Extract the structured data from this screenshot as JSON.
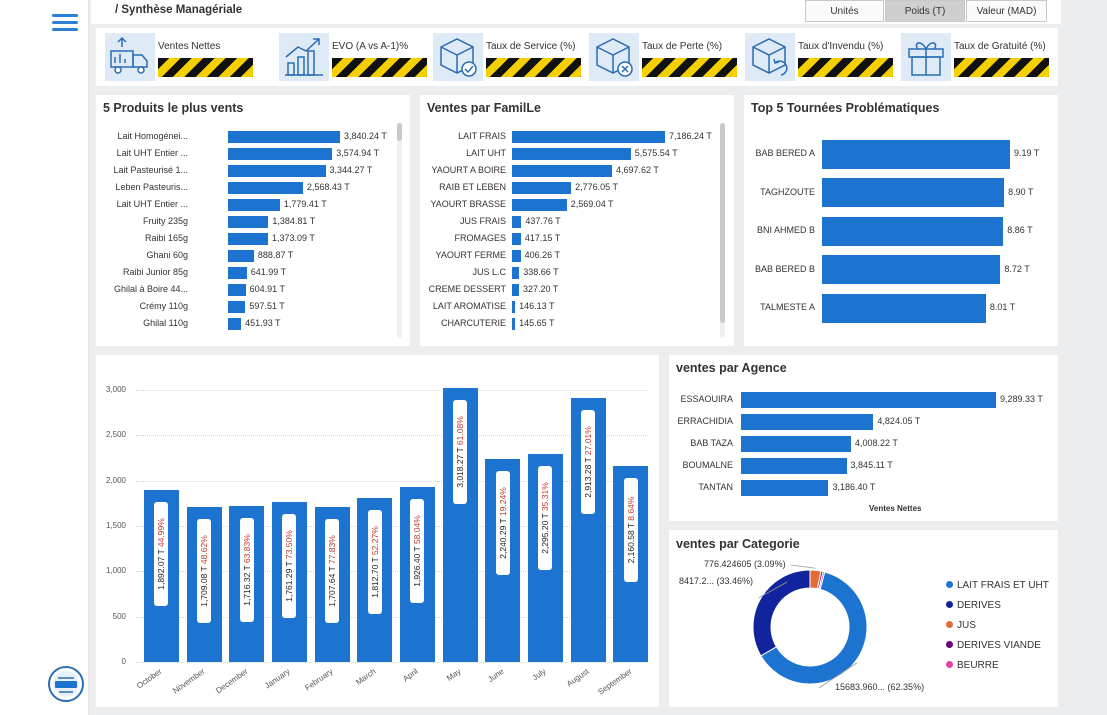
{
  "page": {
    "title": "/ Synthèse Managériale"
  },
  "toggles": [
    {
      "label": "Unités",
      "active": false
    },
    {
      "label": "Poids (T)",
      "active": true
    },
    {
      "label": "Valeur (MAD)",
      "active": false
    }
  ],
  "kpis": [
    {
      "label": "Ventes Nettes",
      "icon": "truck-icon"
    },
    {
      "label": "EVO (A vs A-1)%",
      "icon": "growth-chart-icon"
    },
    {
      "label": "Taux de Service (%)",
      "icon": "box-check-icon"
    },
    {
      "label": "Taux de Perte (%)",
      "icon": "box-cancel-icon"
    },
    {
      "label": "Taux d'Invendu (%)",
      "icon": "box-return-icon"
    },
    {
      "label": "Taux de Gratuité (%)",
      "icon": "gift-icon"
    }
  ],
  "products": {
    "title": "5 Produits le plus vents",
    "items": [
      {
        "label": "Lait Homogénei...",
        "value": 3840.24,
        "text": "3,840.24 T"
      },
      {
        "label": "Lait UHT Entier ...",
        "value": 3574.94,
        "text": "3,574.94 T"
      },
      {
        "label": "Lait Pasteurisé 1...",
        "value": 3344.27,
        "text": "3,344.27 T"
      },
      {
        "label": "Leben Pasteuris...",
        "value": 2568.43,
        "text": "2,568.43 T"
      },
      {
        "label": "Lait UHT Entier ...",
        "value": 1779.41,
        "text": "1,779.41 T"
      },
      {
        "label": "Fruity 235g",
        "value": 1384.81,
        "text": "1,384.81 T"
      },
      {
        "label": "Raibi 165g",
        "value": 1373.09,
        "text": "1,373.09 T"
      },
      {
        "label": "Ghani 60g",
        "value": 888.87,
        "text": "888.87 T"
      },
      {
        "label": "Raibi Junior 85g",
        "value": 641.99,
        "text": "641.99 T"
      },
      {
        "label": "Ghilal à Boire 44...",
        "value": 604.91,
        "text": "604.91 T"
      },
      {
        "label": "Crémy 110g",
        "value": 597.51,
        "text": "597.51 T"
      },
      {
        "label": "Ghilal 110g",
        "value": 451.93,
        "text": "451.93 T"
      }
    ]
  },
  "families": {
    "title": "Ventes par FamilLe",
    "items": [
      {
        "label": "LAIT FRAIS",
        "value": 7186.24,
        "text": "7,186.24 T"
      },
      {
        "label": "LAIT UHT",
        "value": 5575.54,
        "text": "5,575.54 T"
      },
      {
        "label": "YAOURT A BOIRE",
        "value": 4697.62,
        "text": "4,697.62 T"
      },
      {
        "label": "RAIB ET LEBEN",
        "value": 2776.05,
        "text": "2,776.05 T"
      },
      {
        "label": "YAOURT BRASSE",
        "value": 2569.04,
        "text": "2,569.04 T"
      },
      {
        "label": "JUS FRAIS",
        "value": 437.76,
        "text": "437.76 T"
      },
      {
        "label": "FROMAGES",
        "value": 417.15,
        "text": "417.15 T"
      },
      {
        "label": "YAOURT FERME",
        "value": 406.26,
        "text": "406.26 T"
      },
      {
        "label": "JUS L.C",
        "value": 338.66,
        "text": "338.66 T"
      },
      {
        "label": "CREME DESSERT",
        "value": 327.2,
        "text": "327.20 T"
      },
      {
        "label": "LAIT AROMATISE",
        "value": 146.13,
        "text": "146.13 T"
      },
      {
        "label": "CHARCUTERIE",
        "value": 145.65,
        "text": "145.65 T"
      }
    ]
  },
  "tours": {
    "title": "Top 5 Tournées Problématiques",
    "items": [
      {
        "label": "BAB BERED A",
        "value": 9.19,
        "text": "9.19 T"
      },
      {
        "label": "TAGHZOUTE",
        "value": 8.9,
        "text": "8.90 T"
      },
      {
        "label": "BNI AHMED B",
        "value": 8.86,
        "text": "8.86 T"
      },
      {
        "label": "BAB BERED B",
        "value": 8.72,
        "text": "8.72 T"
      },
      {
        "label": "TALMESTE A",
        "value": 8.01,
        "text": "8.01 T"
      }
    ]
  },
  "agencies": {
    "title": "ventes par Agence",
    "xlabel": "Ventes Nettes",
    "items": [
      {
        "label": "ESSAOUIRA",
        "value": 9289.33,
        "text": "9,289.33 T"
      },
      {
        "label": "ERRACHIDIA",
        "value": 4824.05,
        "text": "4,824.05 T"
      },
      {
        "label": "BAB TAZA",
        "value": 4008.22,
        "text": "4,008.22 T"
      },
      {
        "label": "BOUMALNE",
        "value": 3845.11,
        "text": "3,845.11 T"
      },
      {
        "label": "TANTAN",
        "value": 3186.4,
        "text": "3,186.40 T"
      }
    ]
  },
  "monthly": {
    "yticks": [
      "3,000",
      "2,500",
      "2,000",
      "1,500",
      "1,000",
      "500",
      "0"
    ],
    "ymax": 3000,
    "items": [
      {
        "month": "October",
        "value": 1892.07,
        "text": "1,892.07 T",
        "pct": "44.99%"
      },
      {
        "month": "November",
        "value": 1709.08,
        "text": "1,709.08 T",
        "pct": "48.62%"
      },
      {
        "month": "December",
        "value": 1716.32,
        "text": "1,716.32 T",
        "pct": "63.83%"
      },
      {
        "month": "January",
        "value": 1761.29,
        "text": "1,761.29 T",
        "pct": "73.50%"
      },
      {
        "month": "February",
        "value": 1707.64,
        "text": "1,707.64 T",
        "pct": "77.83%"
      },
      {
        "month": "March",
        "value": 1812.7,
        "text": "1,812.70 T",
        "pct": "52.27%"
      },
      {
        "month": "April",
        "value": 1926.4,
        "text": "1,926.40 T",
        "pct": "58.04%"
      },
      {
        "month": "May",
        "value": 3018.27,
        "text": "3,018.27 T",
        "pct": "61.08%"
      },
      {
        "month": "June",
        "value": 2240.29,
        "text": "2,240.29 T",
        "pct": "19.24%"
      },
      {
        "month": "July",
        "value": 2295.2,
        "text": "2,295.20 T",
        "pct": "35.31%"
      },
      {
        "month": "August",
        "value": 2913.28,
        "text": "2,913.28 T",
        "pct": "27.01%"
      },
      {
        "month": "September",
        "value": 2160.58,
        "text": "2,160.58 T",
        "pct": "8.64%"
      }
    ]
  },
  "categories": {
    "title": "ventes par Categorie",
    "slices": [
      {
        "name": "LAIT FRAIS ET UHT",
        "pct": 62.35,
        "color": "#1d74d0",
        "label": "15683.960... (62.35%)"
      },
      {
        "name": "DERIVES",
        "pct": 33.46,
        "color": "#12239e",
        "label": "8417.2... (33.46%)"
      },
      {
        "name": "JUS",
        "pct": 3.09,
        "color": "#e66c37",
        "label": "776.424605 (3.09%)"
      },
      {
        "name": "DERIVES VIANDE",
        "pct": 0.6,
        "color": "#6b007b",
        "label": ""
      },
      {
        "name": "BEURRE",
        "pct": 0.5,
        "color": "#e044a7",
        "label": ""
      }
    ]
  },
  "chart_data": [
    {
      "type": "bar",
      "title": "5 Produits le plus vents",
      "categories": [
        "Lait Homogénei...",
        "Lait UHT Entier ...",
        "Lait Pasteurisé 1...",
        "Leben Pasteuris...",
        "Lait UHT Entier ...",
        "Fruity 235g",
        "Raibi 165g",
        "Ghani 60g",
        "Raibi Junior 85g",
        "Ghilal à Boire 44...",
        "Crémy 110g",
        "Ghilal 110g"
      ],
      "values": [
        3840.24,
        3574.94,
        3344.27,
        2568.43,
        1779.41,
        1384.81,
        1373.09,
        888.87,
        641.99,
        604.91,
        597.51,
        451.93
      ]
    },
    {
      "type": "bar",
      "title": "Ventes par FamilLe",
      "categories": [
        "LAIT FRAIS",
        "LAIT UHT",
        "YAOURT A BOIRE",
        "RAIB ET LEBEN",
        "YAOURT BRASSE",
        "JUS FRAIS",
        "FROMAGES",
        "YAOURT FERME",
        "JUS L.C",
        "CREME DESSERT",
        "LAIT AROMATISE",
        "CHARCUTERIE"
      ],
      "values": [
        7186.24,
        5575.54,
        4697.62,
        2776.05,
        2569.04,
        437.76,
        417.15,
        406.26,
        338.66,
        327.2,
        146.13,
        145.65
      ]
    },
    {
      "type": "bar",
      "title": "Top 5 Tournées Problématiques",
      "categories": [
        "BAB BERED A",
        "TAGHZOUTE",
        "BNI AHMED B",
        "BAB BERED B",
        "TALMESTE A"
      ],
      "values": [
        9.19,
        8.9,
        8.86,
        8.72,
        8.01
      ]
    },
    {
      "type": "bar",
      "title": "ventes par Agence",
      "xlabel": "Ventes Nettes",
      "categories": [
        "ESSAOUIRA",
        "ERRACHIDIA",
        "BAB TAZA",
        "BOUMALNE",
        "TANTAN"
      ],
      "values": [
        9289.33,
        4824.05,
        4008.22,
        3845.11,
        3186.4
      ]
    },
    {
      "type": "bar",
      "categories": [
        "October",
        "November",
        "December",
        "January",
        "February",
        "March",
        "April",
        "May",
        "June",
        "July",
        "August",
        "September"
      ],
      "values": [
        1892.07,
        1709.08,
        1716.32,
        1761.29,
        1707.64,
        1812.7,
        1926.4,
        3018.27,
        2240.29,
        2295.2,
        2913.28,
        2160.58
      ],
      "ylim": [
        0,
        3000
      ],
      "grid": true
    },
    {
      "type": "pie",
      "title": "ventes par Categorie",
      "categories": [
        "LAIT FRAIS ET UHT",
        "DERIVES",
        "JUS",
        "DERIVES VIANDE",
        "BEURRE"
      ],
      "values": [
        62.35,
        33.46,
        3.09,
        0.6,
        0.5
      ],
      "legend": "right"
    }
  ]
}
